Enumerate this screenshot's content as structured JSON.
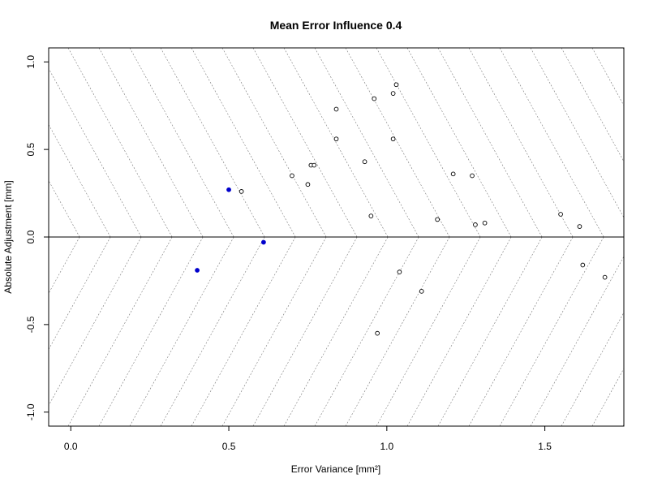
{
  "chart_data": {
    "type": "scatter",
    "title": "Mean Error Influence 0.4",
    "xlabel": "Error Variance [mm²]",
    "ylabel": "Absolute Adjustment [mm]",
    "xlim": [
      -0.07,
      1.75
    ],
    "ylim": [
      -1.08,
      1.08
    ],
    "x_ticks": [
      0.0,
      0.5,
      1.0,
      1.5
    ],
    "x_tick_labels": [
      "0.0",
      "0.5",
      "1.0",
      "1.5"
    ],
    "y_ticks": [
      -1.0,
      -0.5,
      0.0,
      0.5,
      1.0
    ],
    "y_tick_labels": [
      "-1.0",
      "-0.5",
      "0.0",
      "0.5",
      "1.0"
    ],
    "grid": false,
    "hline": 0.0,
    "colors": {
      "highlight": "#0000cc",
      "normal": "#000000",
      "hatch": "#777777"
    },
    "series": [
      {
        "style": "open-circle",
        "points": [
          [
            0.54,
            0.26
          ],
          [
            0.7,
            0.35
          ],
          [
            0.75,
            0.3
          ],
          [
            0.76,
            0.41
          ],
          [
            0.77,
            0.41
          ],
          [
            0.84,
            0.73
          ],
          [
            0.84,
            0.56
          ],
          [
            0.93,
            0.43
          ],
          [
            0.95,
            0.12
          ],
          [
            0.96,
            0.79
          ],
          [
            1.02,
            0.82
          ],
          [
            1.02,
            0.56
          ],
          [
            1.03,
            0.87
          ],
          [
            1.16,
            0.1
          ],
          [
            1.21,
            0.36
          ],
          [
            1.27,
            0.35
          ],
          [
            1.28,
            0.07
          ],
          [
            1.31,
            0.08
          ],
          [
            1.55,
            0.13
          ],
          [
            1.61,
            0.06
          ],
          [
            1.04,
            -0.2
          ],
          [
            1.11,
            -0.31
          ],
          [
            0.97,
            -0.55
          ],
          [
            1.62,
            -0.16
          ],
          [
            1.69,
            -0.23
          ]
        ]
      },
      {
        "style": "filled-circle",
        "color": "#0000cc",
        "points": [
          [
            0.5,
            0.27
          ],
          [
            0.61,
            -0.03
          ],
          [
            0.4,
            -0.19
          ]
        ]
      }
    ]
  }
}
